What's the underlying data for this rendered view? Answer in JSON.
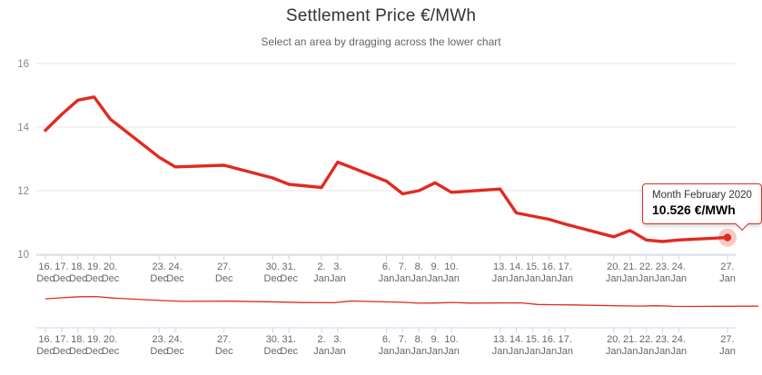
{
  "chart": {
    "title": "Settlement Price €/MWh",
    "subtitle": "Select an area by dragging across the lower chart"
  },
  "tooltip": {
    "title": "Month February 2020",
    "value": "10.526 €/MWh"
  },
  "chart_data": {
    "type": "line",
    "title": "Settlement Price €/MWh",
    "subtitle": "Select an area by dragging across the lower chart",
    "series_name": "Month February 2020",
    "unit": "€/MWh",
    "xlabel": "",
    "ylabel": "",
    "ylim": [
      10,
      16
    ],
    "yticks": [
      10,
      12,
      14,
      16
    ],
    "grid": true,
    "legend_position": "none",
    "x": [
      "16. Dec",
      "17. Dec",
      "18. Dec",
      "19. Dec",
      "20. Dec",
      "23. Dec",
      "24. Dec",
      "27. Dec",
      "30. Dec",
      "31. Dec",
      "2. Jan",
      "3. Jan",
      "6. Jan",
      "7. Jan",
      "8. Jan",
      "9. Jan",
      "10. Jan",
      "13. Jan",
      "14. Jan",
      "15. Jan",
      "16. Jan",
      "17. Jan",
      "20. Jan",
      "21. Jan",
      "22. Jan",
      "23. Jan",
      "24. Jan",
      "27. Jan"
    ],
    "day_offsets": [
      0,
      1,
      2,
      3,
      4,
      7,
      8,
      11,
      14,
      15,
      17,
      18,
      21,
      22,
      23,
      24,
      25,
      28,
      29,
      30,
      31,
      32,
      35,
      36,
      37,
      38,
      39,
      42
    ],
    "values": [
      13.9,
      14.4,
      14.85,
      14.95,
      14.25,
      13.05,
      12.75,
      12.8,
      12.4,
      12.2,
      12.1,
      12.9,
      12.3,
      11.9,
      12.0,
      12.25,
      11.95,
      12.05,
      11.3,
      11.2,
      11.1,
      10.95,
      10.55,
      10.75,
      10.45,
      10.4,
      10.45,
      10.526
    ],
    "last_point_value": 10.526,
    "navigator": true,
    "colors": {
      "line": "#e02b20",
      "halo": "#e02b20",
      "grid": "#e6e6e6",
      "axis": "#ccd6eb",
      "axis_label": "#666666",
      "y_label": "#888888",
      "title": "#333333",
      "subtitle": "#666666",
      "tooltip_border": "#e02b20"
    }
  }
}
